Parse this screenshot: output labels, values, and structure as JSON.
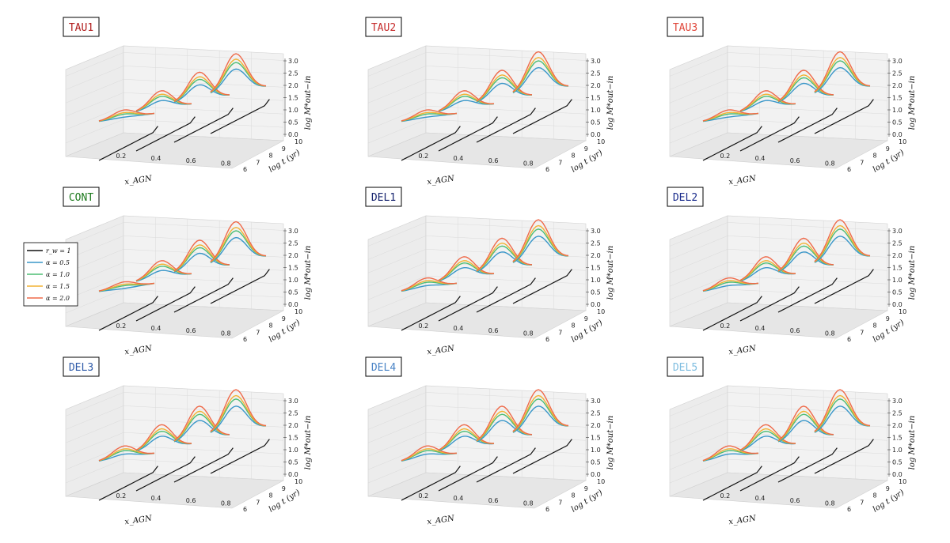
{
  "figure": {
    "legend": {
      "entries": [
        {
          "label": "$r_\\omega = 1$",
          "display": "r_w = 1",
          "color": "#111111"
        },
        {
          "label": "$\\alpha = 0.5$",
          "display": "α = 0.5",
          "color": "#3a97c9"
        },
        {
          "label": "$\\alpha = 1.0$",
          "display": "α = 1.0",
          "color": "#4dbd74"
        },
        {
          "label": "$\\alpha = 1.5$",
          "display": "α = 1.5",
          "color": "#f2b233"
        },
        {
          "label": "$\\alpha = 2.0$",
          "display": "α = 2.0",
          "color": "#ef6a4a"
        }
      ]
    }
  },
  "chart_data": [
    {
      "type": "line",
      "title": "TAU1",
      "title_color": "#b01c1c",
      "xlabel": "x_AGN",
      "ylabel": "log t (yr)",
      "zlabel": "log M*out−in",
      "xticks": [
        "0.2",
        "0.4",
        "0.6",
        "0.8"
      ],
      "yticks": [
        "6",
        "7",
        "8",
        "9",
        "10"
      ],
      "zticks": [
        "0.0",
        "0.5",
        "1.0",
        "1.5",
        "2.0",
        "2.5",
        "3.0"
      ],
      "x_slices": [
        0.15,
        0.35,
        0.55,
        0.75
      ],
      "series": [
        "α = 0.5",
        "α = 1.0",
        "α = 1.5",
        "α = 2.0"
      ],
      "black_line": "r_w = 1",
      "peaks_logM_at_alpha2": [
        1.3,
        1.8,
        2.3,
        2.8
      ]
    },
    {
      "type": "line",
      "title": "TAU2",
      "title_color": "#c62c2c",
      "xlabel": "x_AGN",
      "ylabel": "log t (yr)",
      "zlabel": "log M*out−in",
      "xticks": [
        "0.2",
        "0.4",
        "0.6",
        "0.8"
      ],
      "yticks": [
        "6",
        "7",
        "8",
        "9",
        "10"
      ],
      "zticks": [
        "0.0",
        "0.5",
        "1.0",
        "1.5",
        "2.0",
        "2.5",
        "3.0"
      ],
      "x_slices": [
        0.15,
        0.35,
        0.55,
        0.75
      ],
      "series": [
        "α = 0.5",
        "α = 1.0",
        "α = 1.5",
        "α = 2.0"
      ],
      "black_line": "r_w = 1",
      "peaks_logM_at_alpha2": [
        1.3,
        1.8,
        2.4,
        2.9
      ]
    },
    {
      "type": "line",
      "title": "TAU3",
      "title_color": "#e0463a",
      "xlabel": "x_AGN",
      "ylabel": "log t (yr)",
      "zlabel": "log M*out−in",
      "xticks": [
        "0.2",
        "0.4",
        "0.6",
        "0.8"
      ],
      "yticks": [
        "6",
        "7",
        "8",
        "9",
        "10"
      ],
      "zticks": [
        "0.0",
        "0.5",
        "1.0",
        "1.5",
        "2.0",
        "2.5",
        "3.0"
      ],
      "x_slices": [
        0.15,
        0.35,
        0.55,
        0.75
      ],
      "series": [
        "α = 0.5",
        "α = 1.0",
        "α = 1.5",
        "α = 2.0"
      ],
      "black_line": "r_w = 1",
      "peaks_logM_at_alpha2": [
        1.3,
        1.8,
        2.4,
        2.9
      ]
    },
    {
      "type": "line",
      "title": "CONT",
      "title_color": "#1d7a1d",
      "xlabel": "x_AGN",
      "ylabel": "log t (yr)",
      "zlabel": "log M*out−in",
      "xticks": [
        "0.2",
        "0.4",
        "0.6",
        "0.8"
      ],
      "yticks": [
        "6",
        "7",
        "8",
        "9",
        "10"
      ],
      "zticks": [
        "0.0",
        "0.5",
        "1.0",
        "1.5",
        "2.0",
        "2.5",
        "3.0"
      ],
      "x_slices": [
        0.15,
        0.35,
        0.55,
        0.75
      ],
      "series": [
        "α = 0.5",
        "α = 1.0",
        "α = 1.5",
        "α = 2.0"
      ],
      "black_line": "r_w = 1",
      "peaks_logM_at_alpha2": [
        1.2,
        1.8,
        2.4,
        2.9
      ]
    },
    {
      "type": "line",
      "title": "DEL1",
      "title_color": "#16236e",
      "xlabel": "x_AGN",
      "ylabel": "log t (yr)",
      "zlabel": "log M*out−in",
      "xticks": [
        "0.2",
        "0.4",
        "0.6",
        "0.8"
      ],
      "yticks": [
        "6",
        "7",
        "8",
        "9",
        "10"
      ],
      "zticks": [
        "0.0",
        "0.5",
        "1.0",
        "1.5",
        "2.0",
        "2.5",
        "3.0"
      ],
      "x_slices": [
        0.15,
        0.35,
        0.55,
        0.75
      ],
      "series": [
        "α = 0.5",
        "α = 1.0",
        "α = 1.5",
        "α = 2.0"
      ],
      "black_line": "r_w = 1",
      "peaks_logM_at_alpha2": [
        1.4,
        2.0,
        2.5,
        3.0
      ]
    },
    {
      "type": "line",
      "title": "DEL2",
      "title_color": "#1a2c8c",
      "xlabel": "x_AGN",
      "ylabel": "log t (yr)",
      "zlabel": "log M*out−in",
      "xticks": [
        "0.2",
        "0.4",
        "0.6",
        "0.8"
      ],
      "yticks": [
        "6",
        "7",
        "8",
        "9",
        "10"
      ],
      "zticks": [
        "0.0",
        "0.5",
        "1.0",
        "1.5",
        "2.0",
        "2.5",
        "3.0"
      ],
      "x_slices": [
        0.15,
        0.35,
        0.55,
        0.75
      ],
      "series": [
        "α = 0.5",
        "α = 1.0",
        "α = 1.5",
        "α = 2.0"
      ],
      "black_line": "r_w = 1",
      "peaks_logM_at_alpha2": [
        1.4,
        2.0,
        2.5,
        3.0
      ]
    },
    {
      "type": "line",
      "title": "DEL3",
      "title_color": "#2e5aa8",
      "xlabel": "x_AGN",
      "ylabel": "log t (yr)",
      "zlabel": "log M*out−in",
      "xticks": [
        "0.2",
        "0.4",
        "0.6",
        "0.8"
      ],
      "yticks": [
        "6",
        "7",
        "8",
        "9",
        "10"
      ],
      "zticks": [
        "0.0",
        "0.5",
        "1.0",
        "1.5",
        "2.0",
        "2.5",
        "3.0"
      ],
      "x_slices": [
        0.15,
        0.35,
        0.55,
        0.75
      ],
      "series": [
        "α = 0.5",
        "α = 1.0",
        "α = 1.5",
        "α = 2.0"
      ],
      "black_line": "r_w = 1",
      "peaks_logM_at_alpha2": [
        1.5,
        2.1,
        2.6,
        3.0
      ]
    },
    {
      "type": "line",
      "title": "DEL4",
      "title_color": "#4a84c6",
      "xlabel": "x_AGN",
      "ylabel": "log t (yr)",
      "zlabel": "log M*out−in",
      "xticks": [
        "0.2",
        "0.4",
        "0.6",
        "0.8"
      ],
      "yticks": [
        "6",
        "7",
        "8",
        "9",
        "10"
      ],
      "zticks": [
        "0.0",
        "0.5",
        "1.0",
        "1.5",
        "2.0",
        "2.5",
        "3.0"
      ],
      "x_slices": [
        0.15,
        0.35,
        0.55,
        0.75
      ],
      "series": [
        "α = 0.5",
        "α = 1.0",
        "α = 1.5",
        "α = 2.0"
      ],
      "black_line": "r_w = 1",
      "peaks_logM_at_alpha2": [
        1.5,
        2.1,
        2.6,
        3.0
      ]
    },
    {
      "type": "line",
      "title": "DEL5",
      "title_color": "#7fbde0",
      "xlabel": "x_AGN",
      "ylabel": "log t (yr)",
      "zlabel": "log M*out−in",
      "xticks": [
        "0.2",
        "0.4",
        "0.6",
        "0.8"
      ],
      "yticks": [
        "6",
        "7",
        "8",
        "9",
        "10"
      ],
      "zticks": [
        "0.0",
        "0.5",
        "1.0",
        "1.5",
        "2.0",
        "2.5",
        "3.0"
      ],
      "x_slices": [
        0.15,
        0.35,
        0.55,
        0.75
      ],
      "series": [
        "α = 0.5",
        "α = 1.0",
        "α = 1.5",
        "α = 2.0"
      ],
      "black_line": "r_w = 1",
      "peaks_logM_at_alpha2": [
        1.5,
        2.1,
        2.6,
        3.0
      ]
    }
  ]
}
